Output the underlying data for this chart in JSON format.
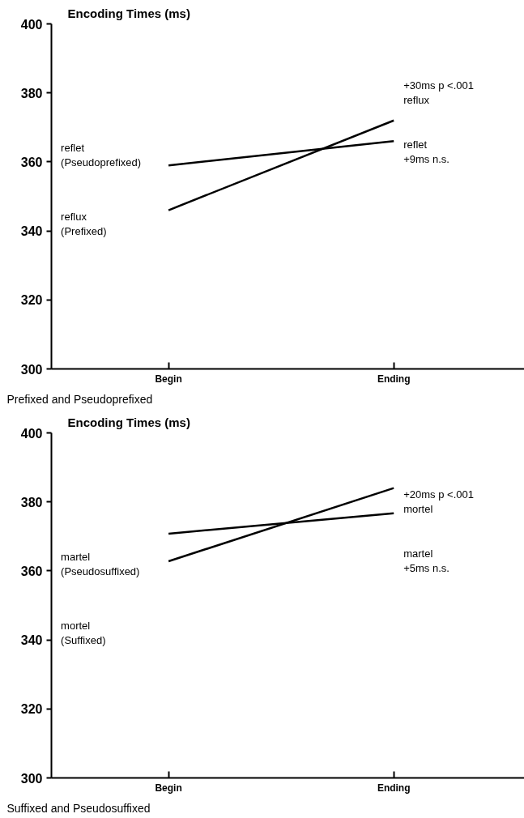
{
  "chart_data": [
    {
      "type": "line",
      "title": "Encoding Times (ms)",
      "categories": [
        "Begin",
        "Ending"
      ],
      "ylim": [
        300,
        400
      ],
      "yticks": [
        300,
        320,
        340,
        360,
        380,
        400
      ],
      "grid": false,
      "series": [
        {
          "color": "#000000",
          "values": [
            346,
            372
          ]
        },
        {
          "color": "#000000",
          "values": [
            359,
            366
          ]
        }
      ],
      "annotations": [
        "reflet\n(Pseudoprefixed)",
        "reflux\n(Prefixed)",
        "+30ms p <.001\nreflux",
        "reflet\n+9ms n.s.",
        "Prefixed and Pseudoprefixed"
      ]
    },
    {
      "type": "line",
      "title": "Encoding Times (ms)",
      "categories": [
        "Begin",
        "Ending"
      ],
      "ylim": [
        300,
        400
      ],
      "yticks": [
        300,
        320,
        340,
        360,
        380,
        400
      ],
      "grid": false,
      "series": [
        {
          "color": "#000000",
          "values": [
            362.8,
            384
          ]
        },
        {
          "color": "#000000",
          "values": [
            370.8,
            376.7
          ]
        }
      ],
      "annotations": [
        "martel\n(Pseudosuffixed)",
        "mortel\n(Suffixed)",
        "+20ms p <.001\nmortel",
        "martel\n+5ms n.s.",
        "Suffixed and Pseudosuffixed"
      ]
    }
  ]
}
